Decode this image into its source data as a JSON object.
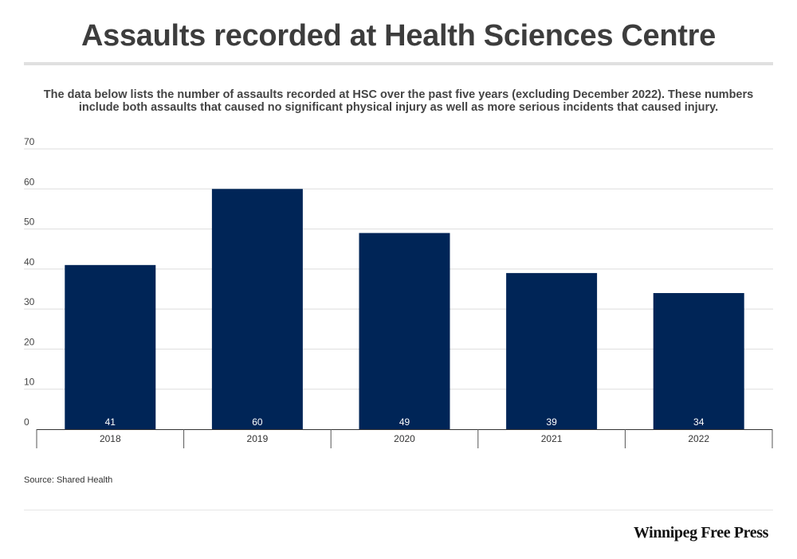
{
  "header": {
    "title": "Assaults recorded at Health Sciences Centre",
    "subtitle": "The data below lists the number of assaults recorded at HSC over the past five years (excluding December 2022). These numbers include both assaults that caused no significant physical injury as well as more serious incidents that caused injury."
  },
  "chart_data": {
    "type": "bar",
    "categories": [
      "2018",
      "2019",
      "2020",
      "2021",
      "2022"
    ],
    "values": [
      41,
      60,
      49,
      39,
      34
    ],
    "ylim": [
      0,
      70
    ],
    "yticks": [
      0,
      10,
      20,
      30,
      40,
      50,
      60,
      70
    ],
    "title": "",
    "xlabel": "",
    "ylabel": "",
    "grid": true,
    "data_labels": true,
    "bar_color": "#002557",
    "label_color": "#ffffff",
    "grid_color": "#dddddd"
  },
  "footer": {
    "source": "Source: Shared Health",
    "brand": "Winnipeg Free Press"
  }
}
